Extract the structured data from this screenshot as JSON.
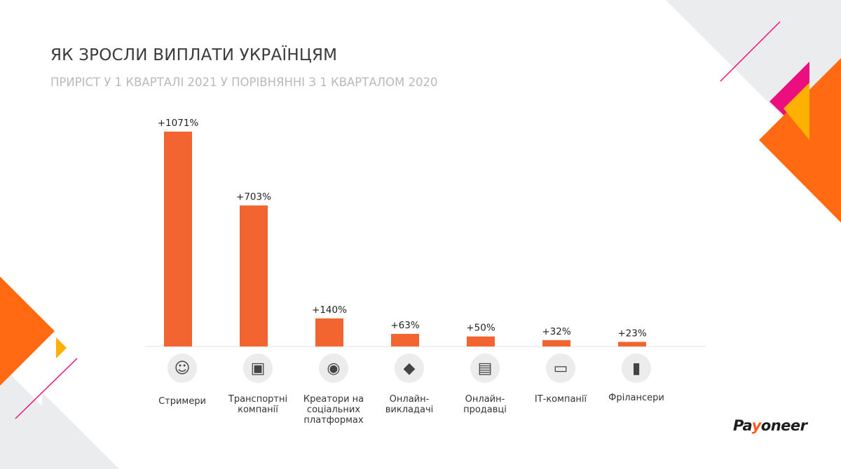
{
  "header": {
    "title": "ЯК ЗРОСЛИ ВИПЛАТИ УКРАЇНЦЯМ",
    "subtitle": "ПРИРІСТ У 1 КВАРТАЛІ 2021 У ПОРІВНЯННІ З 1 КВАРТАЛОМ 2020"
  },
  "colors": {
    "bar": "#f26531",
    "accent_orange": "#ff6a13",
    "accent_pink": "#ec0d7f",
    "accent_yellow": "#ffb000",
    "gray_shape": "#ebecee"
  },
  "logo": {
    "text_before": "Pa",
    "text_accent": "y",
    "text_after": "oneer"
  },
  "chart_data": {
    "type": "bar",
    "title": "ЯК ЗРОСЛИ ВИПЛАТИ УКРАЇНЦЯМ",
    "subtitle": "ПРИРІСТ У 1 КВАРТАЛІ 2021 У ПОРІВНЯННІ З 1 КВАРТАЛОМ 2020",
    "categories": [
      [
        "Стримери"
      ],
      [
        "Транспортні",
        "компанії"
      ],
      [
        "Креатори на",
        "соціальних",
        "платформах"
      ],
      [
        "Онлайн-",
        "викладачі"
      ],
      [
        "Онлайн-",
        "продавці"
      ],
      [
        "ІТ-компанії"
      ],
      [
        "Фрілансери"
      ]
    ],
    "values": [
      1071,
      703,
      140,
      63,
      50,
      32,
      23
    ],
    "data_labels": [
      "+1071%",
      "+703%",
      "+140%",
      "+63%",
      "+50%",
      "+32%",
      "+23%"
    ],
    "icons": [
      "headset-person-icon",
      "truck-icon",
      "camera-icon",
      "graduation-cap-icon",
      "shop-icon",
      "monitor-icon",
      "coffee-cup-icon"
    ],
    "ylim": [
      0,
      1071
    ],
    "xlabel": "",
    "ylabel": "",
    "grid": false,
    "legend": "none"
  }
}
